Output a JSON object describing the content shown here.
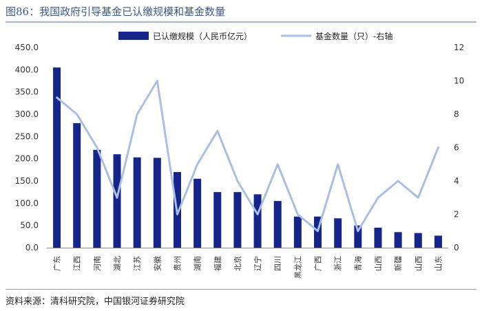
{
  "title": "图86：我国政府引导基金已认缴规模和基金数量",
  "source": "资料来源：清科研究院，中国银河证券研究院",
  "colors": {
    "bar": "#15258a",
    "line": "#a9bee3",
    "title": "#3b5a8c"
  },
  "chart_data": {
    "type": "bar+line",
    "categories": [
      "广东",
      "江西",
      "河南",
      "湖北",
      "江苏",
      "安徽",
      "贵州",
      "湖南",
      "福建",
      "北京",
      "辽宁",
      "四川",
      "黑龙江",
      "广西",
      "浙江",
      "青海",
      "山西",
      "新疆",
      "山西",
      "山东"
    ],
    "series": [
      {
        "name": "已认缴规模（人民币亿元）",
        "type": "bar",
        "axis": "left",
        "values": [
          405,
          280,
          220,
          210,
          203,
          202,
          170,
          155,
          125,
          125,
          120,
          105,
          70,
          70,
          66,
          50,
          45,
          35,
          33,
          27
        ]
      },
      {
        "name": "基金数量（只）-右轴",
        "type": "line",
        "axis": "right",
        "values": [
          9,
          8,
          6,
          3,
          8,
          10,
          2,
          5,
          7,
          4,
          2,
          5,
          2,
          1,
          5,
          1,
          3,
          4,
          3,
          6
        ]
      }
    ],
    "y_left": {
      "ylim": [
        0,
        450
      ],
      "ticks": [
        "0.0",
        "50.0",
        "100.0",
        "150.0",
        "200.0",
        "250.0",
        "300.0",
        "350.0",
        "400.0",
        "450.0"
      ]
    },
    "y_right": {
      "ylim": [
        0,
        12
      ],
      "ticks": [
        "0",
        "2",
        "4",
        "6",
        "8",
        "10",
        "12"
      ]
    },
    "legend": "top-center",
    "grid": false
  }
}
